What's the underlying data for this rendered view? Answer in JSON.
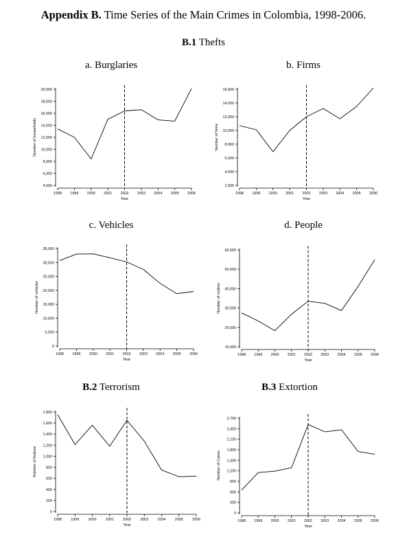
{
  "heading": {
    "bold": "Appendix B.",
    "rest": " Time Series of the Main Crimes in Colombia, 1998-2006."
  },
  "sections": {
    "b1": {
      "bold": "B.1",
      "rest": " Thefts"
    },
    "b2": {
      "bold": "B.2",
      "rest": " Terrorism"
    },
    "b3": {
      "bold": "B.3",
      "rest": " Extortion"
    }
  },
  "subtitles": {
    "burglaries": "a. Burglaries",
    "firms": "b. Firms",
    "vehicles": "c. Vehicles",
    "people": "d. People"
  },
  "chart_data": [
    {
      "id": "burglaries",
      "type": "line",
      "xlabel": "Year",
      "ylabel": "Number of households",
      "x": [
        1998,
        1999,
        2000,
        2001,
        2002,
        2003,
        2004,
        2005,
        2006
      ],
      "values": [
        13400,
        12000,
        8400,
        15000,
        16400,
        16600,
        14900,
        14700,
        20100
      ],
      "ylim": [
        4000,
        20000
      ],
      "yticks": [
        4000,
        6000,
        8000,
        10000,
        12000,
        14000,
        16000,
        18000,
        20000
      ],
      "yticklabels": [
        "4,000",
        "6,000",
        "8,000",
        "10,000",
        "12,000",
        "14,000",
        "16,000",
        "18,000",
        "20,000"
      ],
      "vline": 2002
    },
    {
      "id": "firms",
      "type": "line",
      "xlabel": "Year",
      "ylabel": "Number of firms",
      "x": [
        1998,
        1999,
        2000,
        2001,
        2002,
        2003,
        2004,
        2005,
        2006
      ],
      "values": [
        10700,
        10100,
        6900,
        10000,
        12000,
        13200,
        11700,
        13500,
        16200
      ],
      "ylim": [
        2000,
        16000
      ],
      "yticks": [
        2000,
        4000,
        6000,
        8000,
        10000,
        12000,
        14000,
        16000
      ],
      "yticklabels": [
        "2,000",
        "4,000",
        "6,000",
        "8,000",
        "10,000",
        "12,000",
        "14,000",
        "16,000"
      ],
      "vline": 2002
    },
    {
      "id": "vehicles",
      "type": "line",
      "xlabel": "Year",
      "ylabel": "Number of vehicles",
      "x": [
        1998,
        1999,
        2000,
        2001,
        2002,
        2003,
        2004,
        2005,
        2006
      ],
      "values": [
        30700,
        33000,
        33100,
        31700,
        30200,
        27500,
        22500,
        18800,
        19600
      ],
      "ylim": [
        0,
        35000
      ],
      "yticks": [
        0,
        5000,
        10000,
        15000,
        20000,
        25000,
        30000,
        35000
      ],
      "yticklabels": [
        "0",
        "5,000",
        "10,000",
        "15,000",
        "20,000",
        "25,000",
        "30,000",
        "35,000"
      ],
      "vline": 2002
    },
    {
      "id": "people",
      "type": "line",
      "xlabel": "Year",
      "ylabel": "Number of victims",
      "x": [
        1998,
        1999,
        2000,
        2001,
        2002,
        2003,
        2004,
        2005,
        2006
      ],
      "values": [
        27500,
        23300,
        18300,
        26800,
        33500,
        32400,
        28700,
        41200,
        55000
      ],
      "ylim": [
        10000,
        60000
      ],
      "yticks": [
        10000,
        20000,
        30000,
        40000,
        50000,
        60000
      ],
      "yticklabels": [
        "10,000",
        "20,000",
        "30,000",
        "40,000",
        "50,000",
        "60,000"
      ],
      "vline": 2002
    },
    {
      "id": "terrorism",
      "type": "line",
      "xlabel": "Year",
      "ylabel": "Number of Actions",
      "x": [
        1998,
        1999,
        2000,
        2001,
        2002,
        2003,
        2004,
        2005,
        2006
      ],
      "values": [
        1750,
        1210,
        1560,
        1180,
        1650,
        1270,
        750,
        630,
        640
      ],
      "ylim": [
        0,
        1800
      ],
      "yticks": [
        0,
        200,
        400,
        600,
        800,
        1000,
        1200,
        1400,
        1600,
        1800
      ],
      "yticklabels": [
        "0",
        "200",
        "400",
        "600",
        "800",
        "1,000",
        "1,200",
        "1,400",
        "1,600",
        "1,800"
      ],
      "vline": 2002
    },
    {
      "id": "extortion",
      "type": "line",
      "xlabel": "Year",
      "ylabel": "Number of Cases",
      "x": [
        1998,
        1999,
        2000,
        2001,
        2002,
        2003,
        2004,
        2005,
        2006
      ],
      "values": [
        650,
        1150,
        1190,
        1290,
        2520,
        2310,
        2370,
        1750,
        1670
      ],
      "ylim": [
        0,
        2700
      ],
      "yticks": [
        0,
        300,
        600,
        900,
        1200,
        1500,
        1800,
        2100,
        2400,
        2700
      ],
      "yticklabels": [
        "0",
        "300",
        "600",
        "900",
        "1,200",
        "1,500",
        "1,800",
        "2,100",
        "2,400",
        "2,700"
      ],
      "vline": 2002
    }
  ]
}
